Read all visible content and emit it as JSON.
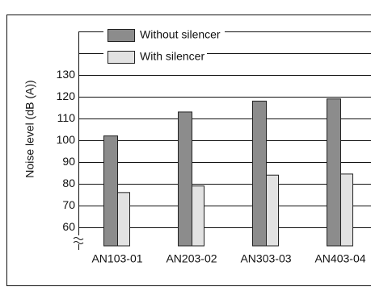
{
  "chart_data": {
    "type": "bar",
    "y_label": "Noise level (dB (A))",
    "categories": [
      "AN103-01",
      "AN203-02",
      "AN303-03",
      "AN403-04"
    ],
    "series": [
      {
        "name": "Without silencer",
        "color": "#8c8c8c",
        "values": [
          102,
          113,
          118,
          119
        ]
      },
      {
        "name": "With silencer",
        "color": "#e2e2e2",
        "values": [
          76,
          79,
          84,
          84.5
        ]
      }
    ],
    "ylim": [
      51.5,
      150
    ],
    "yticks": [
      60,
      70,
      80,
      90,
      100,
      110,
      120,
      130
    ],
    "grid": true
  }
}
